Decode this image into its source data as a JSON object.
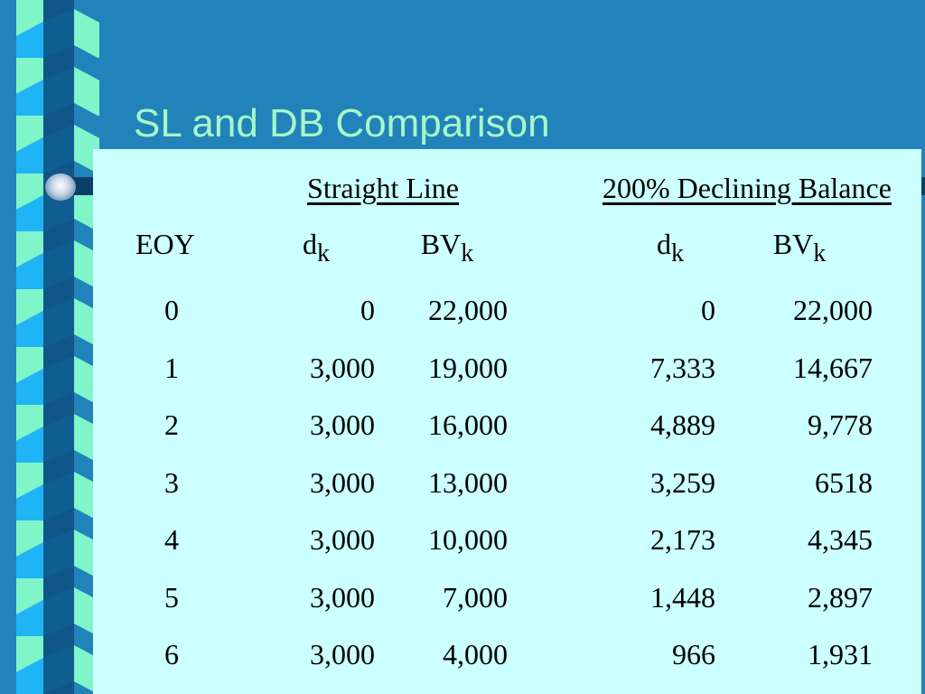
{
  "title": "SL and DB Comparison",
  "table": {
    "groups": [
      "Straight Line",
      "200% Declining Balance"
    ],
    "columns": [
      {
        "text": "EOY"
      },
      {
        "text": "d",
        "sub": "k"
      },
      {
        "text": "BV",
        "sub": "k"
      },
      {
        "text": "d",
        "sub": "k"
      },
      {
        "text": "BV",
        "sub": "k"
      }
    ],
    "rows": [
      [
        "0",
        "0",
        "22,000",
        "0",
        "22,000"
      ],
      [
        "1",
        "3,000",
        "19,000",
        "7,333",
        "14,667"
      ],
      [
        "2",
        "3,000",
        "16,000",
        "4,889",
        "9,778"
      ],
      [
        "3",
        "3,000",
        "13,000",
        "3,259",
        "6518"
      ],
      [
        "4",
        "3,000",
        "10,000",
        "2,173",
        "4,345"
      ],
      [
        "5",
        "3,000",
        "7,000",
        "1,448",
        "2,897"
      ],
      [
        "6",
        "3,000",
        "4,000",
        "966",
        "1,931"
      ]
    ]
  }
}
